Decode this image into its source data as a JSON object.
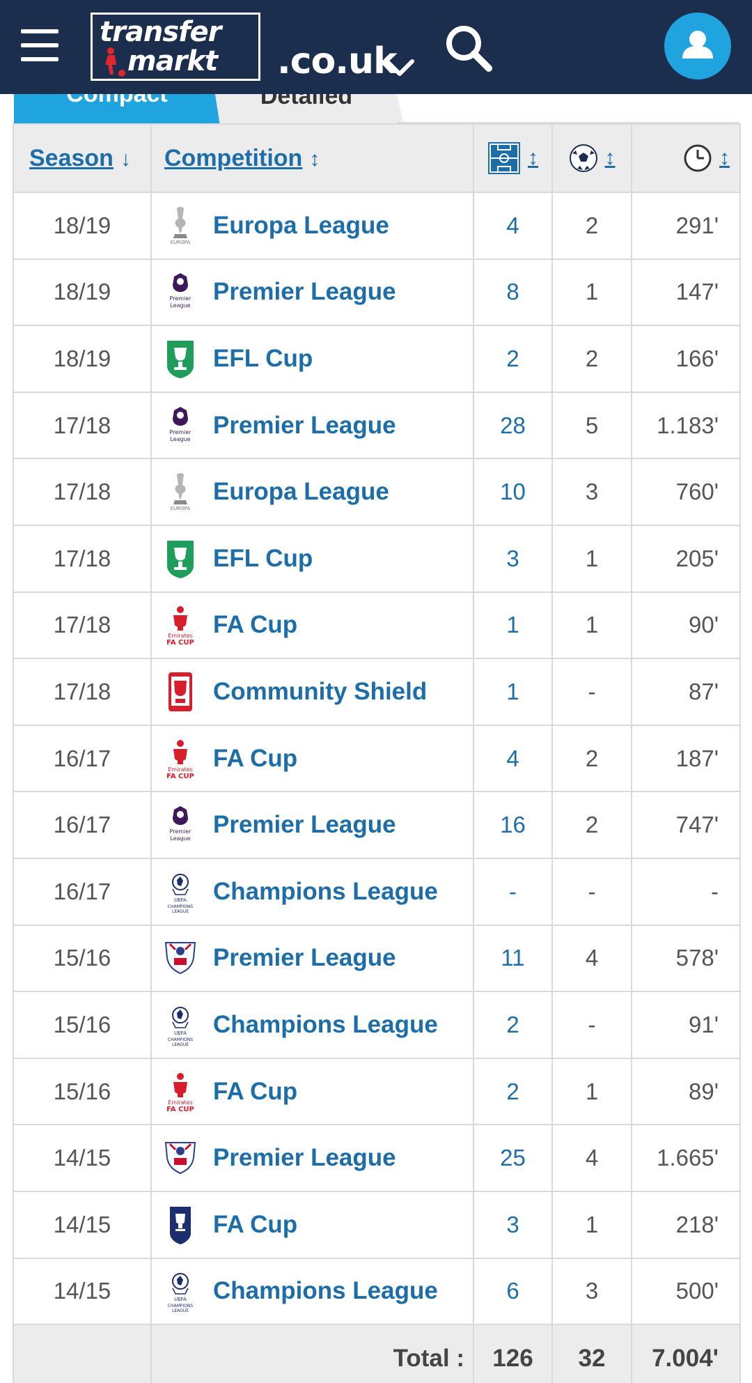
{
  "header": {
    "logo_line1": "transfer",
    "logo_line2": "markt",
    "domain": ".co.uk",
    "icons": [
      "menu-icon",
      "search-icon",
      "chevron-down-icon",
      "user-icon"
    ],
    "accent_color": "#1fa4e0",
    "navbar_color": "#1c2e4d"
  },
  "tabs": {
    "compact": "Compact",
    "detailed": "Detailed",
    "active": "compact"
  },
  "table": {
    "headers": {
      "season": "Season",
      "competition": "Competition",
      "apps_icon": "pitch-icon",
      "goals_icon": "ball-icon",
      "minutes_icon": "clock-icon"
    },
    "rows": [
      {
        "season": "18/19",
        "competition": "Europa League",
        "icon": "europa-league-icon",
        "apps": "4",
        "goals": "2",
        "minutes": "291'"
      },
      {
        "season": "18/19",
        "competition": "Premier League",
        "icon": "premier-league-icon",
        "apps": "8",
        "goals": "1",
        "minutes": "147'"
      },
      {
        "season": "18/19",
        "competition": "EFL Cup",
        "icon": "efl-cup-icon",
        "apps": "2",
        "goals": "2",
        "minutes": "166'"
      },
      {
        "season": "17/18",
        "competition": "Premier League",
        "icon": "premier-league-icon",
        "apps": "28",
        "goals": "5",
        "minutes": "1.183'"
      },
      {
        "season": "17/18",
        "competition": "Europa League",
        "icon": "europa-league-icon",
        "apps": "10",
        "goals": "3",
        "minutes": "760'"
      },
      {
        "season": "17/18",
        "competition": "EFL Cup",
        "icon": "efl-cup-icon",
        "apps": "3",
        "goals": "1",
        "minutes": "205'"
      },
      {
        "season": "17/18",
        "competition": "FA Cup",
        "icon": "fa-cup-icon",
        "apps": "1",
        "goals": "1",
        "minutes": "90'"
      },
      {
        "season": "17/18",
        "competition": "Community Shield",
        "icon": "community-shield-icon",
        "apps": "1",
        "goals": "-",
        "minutes": "87'"
      },
      {
        "season": "16/17",
        "competition": "FA Cup",
        "icon": "fa-cup-icon",
        "apps": "4",
        "goals": "2",
        "minutes": "187'"
      },
      {
        "season": "16/17",
        "competition": "Premier League",
        "icon": "premier-league-icon",
        "apps": "16",
        "goals": "2",
        "minutes": "747'"
      },
      {
        "season": "16/17",
        "competition": "Champions League",
        "icon": "champions-league-icon",
        "apps": "-",
        "goals": "-",
        "minutes": "-"
      },
      {
        "season": "15/16",
        "competition": "Premier League",
        "icon": "premier-league-old-icon",
        "apps": "11",
        "goals": "4",
        "minutes": "578'"
      },
      {
        "season": "15/16",
        "competition": "Champions League",
        "icon": "champions-league-icon",
        "apps": "2",
        "goals": "-",
        "minutes": "91'"
      },
      {
        "season": "15/16",
        "competition": "FA Cup",
        "icon": "fa-cup-icon",
        "apps": "2",
        "goals": "1",
        "minutes": "89'"
      },
      {
        "season": "14/15",
        "competition": "Premier League",
        "icon": "premier-league-old-icon",
        "apps": "25",
        "goals": "4",
        "minutes": "1.665'"
      },
      {
        "season": "14/15",
        "competition": "FA Cup",
        "icon": "fa-cup-old-icon",
        "apps": "3",
        "goals": "1",
        "minutes": "218'"
      },
      {
        "season": "14/15",
        "competition": "Champions League",
        "icon": "champions-league-icon",
        "apps": "6",
        "goals": "3",
        "minutes": "500'"
      }
    ],
    "footer": {
      "label": "Total :",
      "apps": "126",
      "goals": "32",
      "minutes": "7.004'"
    }
  }
}
